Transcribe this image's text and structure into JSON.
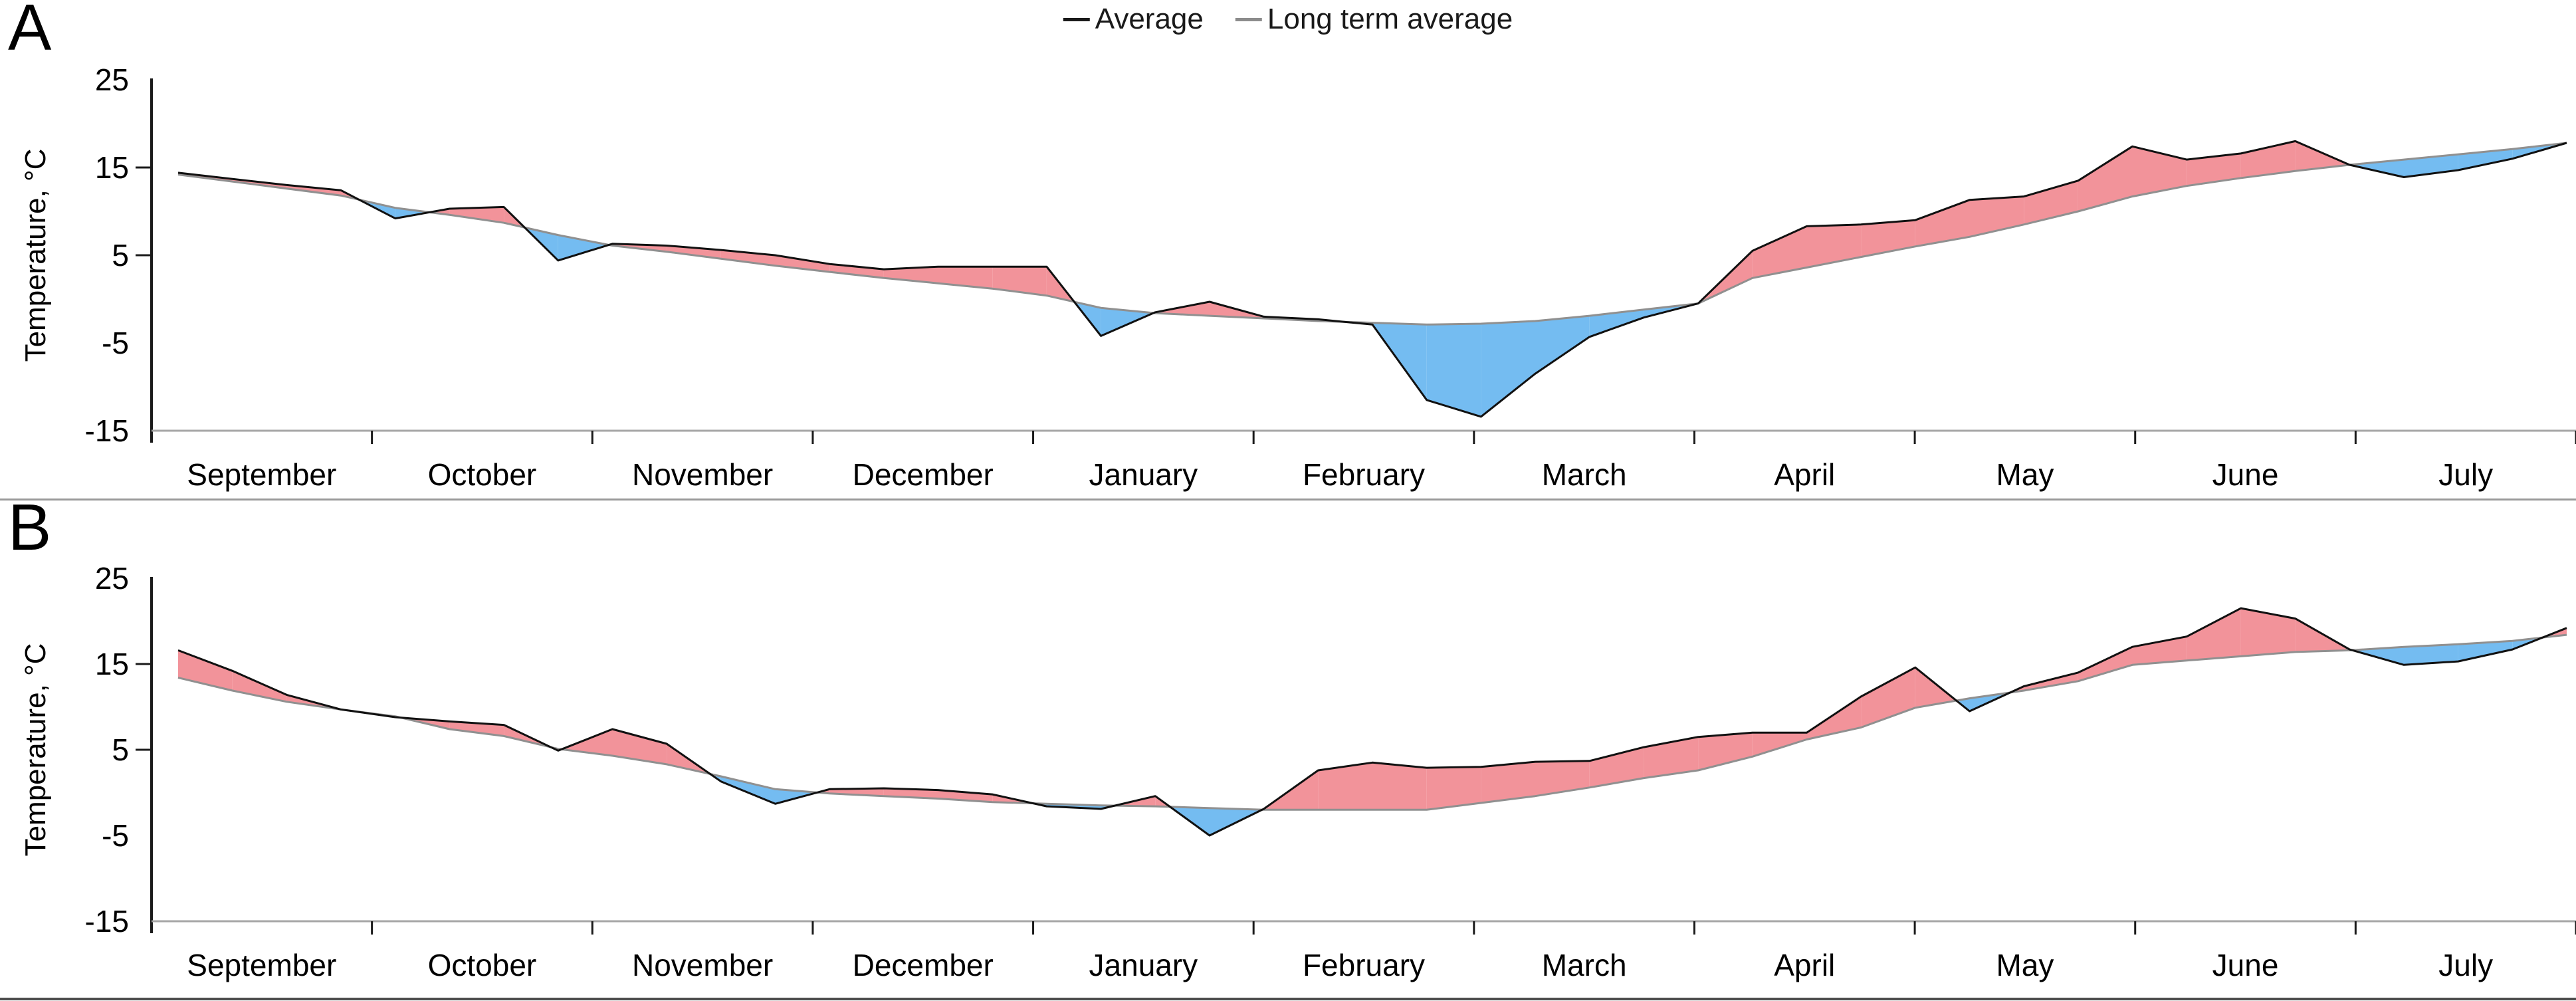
{
  "legend": {
    "items": [
      {
        "label": "Average",
        "color": "#1a1a1a"
      },
      {
        "label": "Long term average",
        "color": "#8c8c8c"
      }
    ]
  },
  "panel_labels": [
    "A",
    "B"
  ],
  "chart_data": [
    {
      "panel": "A",
      "type": "area",
      "y_axis_label": "Temperature, °C",
      "x_categories": [
        "September",
        "October",
        "November",
        "December",
        "January",
        "February",
        "March",
        "April",
        "May",
        "June",
        "July"
      ],
      "y_ticks": [
        25,
        15,
        5,
        -5,
        -15
      ],
      "y_tick_marks": [
        15,
        5
      ],
      "ylim": [
        -15,
        25
      ],
      "fill_above_color": "#F2939A",
      "fill_below_color": "#74BCF1",
      "series": [
        {
          "name": "Average",
          "color": "#111111",
          "values": [
            14.4,
            13.7,
            13.0,
            12.4,
            9.2,
            10.3,
            10.5,
            4.4,
            6.3,
            6.1,
            5.6,
            5.0,
            4.0,
            3.4,
            3.7,
            3.7,
            3.7,
            -4.2,
            -1.5,
            -0.3,
            -2.0,
            -2.3,
            -2.9,
            -11.5,
            -13.4,
            -8.5,
            -4.3,
            -2.1,
            -0.5,
            5.5,
            8.3,
            8.5,
            9.0,
            11.3,
            11.7,
            13.5,
            17.4,
            15.9,
            16.6,
            18.0,
            15.3,
            13.9,
            14.7,
            16.0,
            17.8
          ]
        },
        {
          "name": "Long term average",
          "color": "#909090",
          "values": [
            14.2,
            13.4,
            12.6,
            11.8,
            10.4,
            9.6,
            8.7,
            7.3,
            6.1,
            5.4,
            4.6,
            3.8,
            3.1,
            2.4,
            1.8,
            1.2,
            0.4,
            -1.0,
            -1.6,
            -1.9,
            -2.2,
            -2.5,
            -2.7,
            -2.9,
            -2.8,
            -2.5,
            -1.9,
            -1.2,
            -0.5,
            2.4,
            3.6,
            4.8,
            6.0,
            7.1,
            8.5,
            10.0,
            11.7,
            12.9,
            13.8,
            14.6,
            15.3,
            15.9,
            16.5,
            17.1,
            17.8
          ]
        }
      ]
    },
    {
      "panel": "B",
      "type": "area",
      "y_axis_label": "Temperature, °C",
      "x_categories": [
        "September",
        "October",
        "November",
        "December",
        "January",
        "February",
        "March",
        "April",
        "May",
        "June",
        "July"
      ],
      "y_ticks": [
        25,
        15,
        5,
        -5,
        -15
      ],
      "y_tick_marks": [
        15,
        5
      ],
      "ylim": [
        -15,
        25
      ],
      "fill_above_color": "#F2939A",
      "fill_below_color": "#74BCF1",
      "series": [
        {
          "name": "Average",
          "color": "#111111",
          "values": [
            16.6,
            14.2,
            11.4,
            9.7,
            8.8,
            8.3,
            7.9,
            4.9,
            7.4,
            5.7,
            1.3,
            -1.3,
            0.4,
            0.5,
            0.3,
            -0.2,
            -1.6,
            -1.9,
            -0.4,
            -5.0,
            -1.9,
            2.6,
            3.5,
            2.9,
            3.0,
            3.6,
            3.7,
            5.3,
            6.5,
            7.0,
            7.0,
            11.2,
            14.6,
            9.5,
            12.4,
            14.0,
            17.0,
            18.2,
            21.5,
            20.3,
            16.7,
            14.9,
            15.3,
            16.7,
            19.2
          ]
        },
        {
          "name": "Long term average",
          "color": "#909090",
          "values": [
            13.4,
            11.9,
            10.6,
            9.7,
            8.9,
            7.4,
            6.6,
            5.1,
            4.3,
            3.3,
            1.9,
            0.4,
            -0.1,
            -0.4,
            -0.7,
            -1.1,
            -1.3,
            -1.5,
            -1.6,
            -1.8,
            -2.0,
            -2.0,
            -2.0,
            -2.0,
            -1.2,
            -0.4,
            0.6,
            1.7,
            2.6,
            4.2,
            6.2,
            7.6,
            9.9,
            11.0,
            11.9,
            13.0,
            14.9,
            15.4,
            15.9,
            16.4,
            16.6,
            17.0,
            17.3,
            17.7,
            18.4
          ]
        }
      ]
    }
  ]
}
